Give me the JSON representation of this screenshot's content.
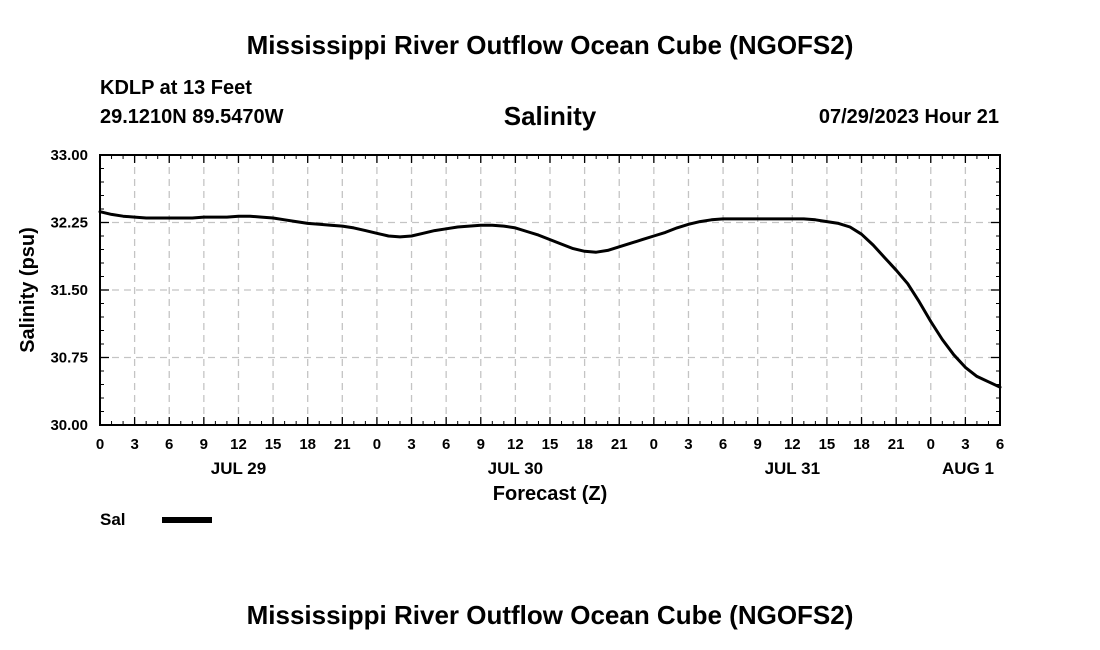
{
  "header": {
    "title": "Mississippi River Outflow Ocean Cube (NGOFS2)",
    "station": "KDLP at 13 Feet",
    "coords": "29.1210N  89.5470W",
    "plot_title": "Salinity",
    "datetime": "07/29/2023 Hour 21"
  },
  "footer": {
    "title": "Mississippi River Outflow Ocean Cube (NGOFS2)"
  },
  "legend": {
    "label": "Sal",
    "color": "#000000"
  },
  "chart_data": {
    "type": "line",
    "title": "Salinity",
    "xlabel": "Forecast (Z)",
    "ylabel": "Salinity (psu)",
    "xlim": [
      0,
      78
    ],
    "ylim": [
      30.0,
      33.0
    ],
    "yticks": [
      30.0,
      30.75,
      31.5,
      32.25,
      33.0
    ],
    "ytick_labels": [
      "30.00",
      "30.75",
      "31.50",
      "32.25",
      "33.00"
    ],
    "xtick_labels": [
      "0",
      "3",
      "6",
      "9",
      "12",
      "15",
      "18",
      "21",
      "0",
      "3",
      "6",
      "9",
      "12",
      "15",
      "18",
      "21",
      "0",
      "3",
      "6",
      "9",
      "12",
      "15",
      "18",
      "21",
      "0",
      "3",
      "6"
    ],
    "date_labels": [
      {
        "label": "JUL 29",
        "hour": 12
      },
      {
        "label": "JUL 30",
        "hour": 36
      },
      {
        "label": "JUL 31",
        "hour": 60
      },
      {
        "label": "AUG 1",
        "hour": 78
      }
    ],
    "grid": true,
    "series": [
      {
        "name": "Sal",
        "color": "#000000",
        "x": [
          0,
          1,
          2,
          3,
          4,
          5,
          6,
          7,
          8,
          9,
          10,
          11,
          12,
          13,
          14,
          15,
          16,
          17,
          18,
          19,
          20,
          21,
          22,
          23,
          24,
          25,
          26,
          27,
          28,
          29,
          30,
          31,
          32,
          33,
          34,
          35,
          36,
          37,
          38,
          39,
          40,
          41,
          42,
          43,
          44,
          45,
          46,
          47,
          48,
          49,
          50,
          51,
          52,
          53,
          54,
          55,
          56,
          57,
          58,
          59,
          60,
          61,
          62,
          63,
          64,
          65,
          66,
          67,
          68,
          69,
          70,
          71,
          72,
          73,
          74,
          75,
          76,
          77,
          78
        ],
        "values": [
          32.37,
          32.34,
          32.32,
          32.31,
          32.3,
          32.3,
          32.3,
          32.3,
          32.3,
          32.31,
          32.31,
          32.31,
          32.32,
          32.32,
          32.31,
          32.3,
          32.28,
          32.26,
          32.24,
          32.23,
          32.22,
          32.21,
          32.19,
          32.16,
          32.13,
          32.1,
          32.09,
          32.1,
          32.13,
          32.16,
          32.18,
          32.2,
          32.21,
          32.22,
          32.22,
          32.21,
          32.19,
          32.15,
          32.11,
          32.06,
          32.01,
          31.96,
          31.93,
          31.92,
          31.94,
          31.98,
          32.02,
          32.06,
          32.1,
          32.14,
          32.19,
          32.23,
          32.26,
          32.28,
          32.29,
          32.29,
          32.29,
          32.29,
          32.29,
          32.29,
          32.29,
          32.29,
          32.28,
          32.26,
          32.24,
          32.2,
          32.12,
          32.0,
          31.86,
          31.72,
          31.57,
          31.37,
          31.15,
          30.95,
          30.78,
          30.64,
          30.54,
          30.48,
          30.42
        ]
      }
    ]
  }
}
